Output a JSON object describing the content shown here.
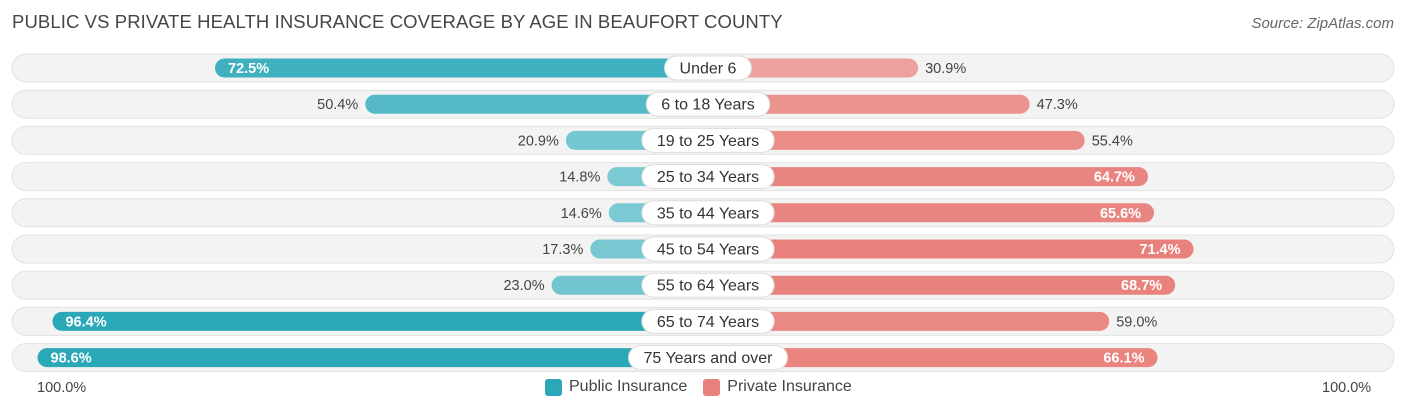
{
  "title": "PUBLIC VS PRIVATE HEALTH INSURANCE COVERAGE BY AGE IN BEAUFORT COUNTY",
  "source": "Source: ZipAtlas.com",
  "axis": {
    "left_label": "100.0%",
    "right_label": "100.0%"
  },
  "legend": [
    {
      "label": "Public Insurance",
      "color": "#2ba8b8"
    },
    {
      "label": "Private Insurance",
      "color": "#e8817c"
    }
  ],
  "chart_data": {
    "type": "bar",
    "orientation": "diverging-horizontal",
    "title": "PUBLIC VS PRIVATE HEALTH INSURANCE COVERAGE BY AGE IN BEAUFORT COUNTY",
    "categories": [
      "Under 6",
      "6 to 18 Years",
      "19 to 25 Years",
      "25 to 34 Years",
      "35 to 44 Years",
      "45 to 54 Years",
      "55 to 64 Years",
      "65 to 74 Years",
      "75 Years and over"
    ],
    "series": [
      {
        "name": "Public Insurance",
        "side": "left",
        "values": [
          72.5,
          50.4,
          20.9,
          14.8,
          14.6,
          17.3,
          23.0,
          96.4,
          98.6
        ],
        "labels": [
          "72.5%",
          "50.4%",
          "20.9%",
          "14.8%",
          "14.6%",
          "17.3%",
          "23.0%",
          "96.4%",
          "98.6%"
        ]
      },
      {
        "name": "Private Insurance",
        "side": "right",
        "values": [
          30.9,
          47.3,
          55.4,
          64.7,
          65.6,
          71.4,
          68.7,
          59.0,
          66.1
        ],
        "labels": [
          "30.9%",
          "47.3%",
          "55.4%",
          "64.7%",
          "65.6%",
          "71.4%",
          "68.7%",
          "59.0%",
          "66.1%"
        ]
      }
    ],
    "xlim": [
      -100,
      100
    ],
    "unit": "%"
  }
}
